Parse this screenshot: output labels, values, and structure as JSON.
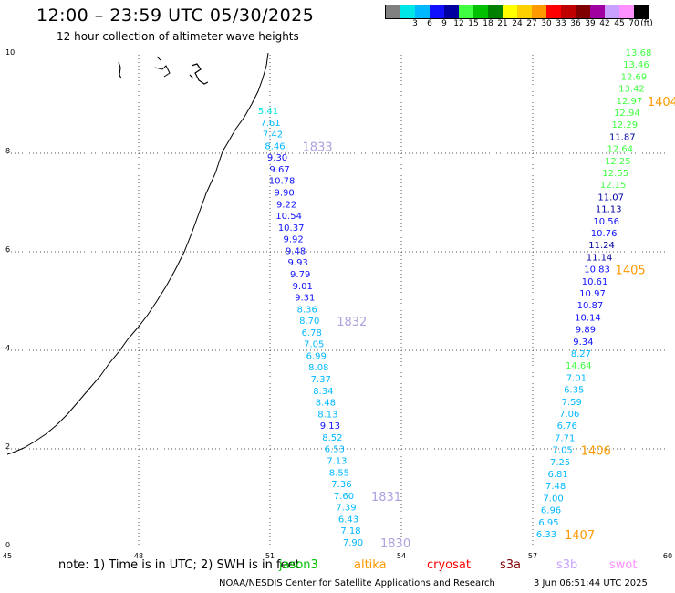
{
  "title": "12:00 – 23:59 UTC 05/30/2025",
  "subtitle": "12 hour collection of altimeter wave heights",
  "scale": {
    "unit": "(ft)",
    "items": [
      {
        "label": "",
        "color": "#808080"
      },
      {
        "label": "3",
        "color": "#00e5e5"
      },
      {
        "label": "6",
        "color": "#00b8ff"
      },
      {
        "label": "9",
        "color": "#1010ff"
      },
      {
        "label": "12",
        "color": "#0000a0"
      },
      {
        "label": "15",
        "color": "#40ff40"
      },
      {
        "label": "18",
        "color": "#00c000"
      },
      {
        "label": "21",
        "color": "#008000"
      },
      {
        "label": "24",
        "color": "#ffff00"
      },
      {
        "label": "27",
        "color": "#ffd000"
      },
      {
        "label": "30",
        "color": "#ff9900"
      },
      {
        "label": "33",
        "color": "#ff0000"
      },
      {
        "label": "36",
        "color": "#c00000"
      },
      {
        "label": "39",
        "color": "#800000"
      },
      {
        "label": "42",
        "color": "#a000a0"
      },
      {
        "label": "45",
        "color": "#c8a0ff"
      },
      {
        "label": "70",
        "color": "#ff90ff"
      },
      {
        "label": "",
        "color": "#000000"
      }
    ]
  },
  "axes": {
    "x_ticks": [
      "45",
      "48",
      "51",
      "54",
      "57",
      "60"
    ],
    "y_ticks": [
      "0",
      "2",
      "4",
      "6",
      "8",
      "10"
    ]
  },
  "track_left": {
    "points": [
      {
        "v": "5.41",
        "c": "#00e5e5"
      },
      {
        "v": "7.61",
        "c": "#00b8ff"
      },
      {
        "v": "7.42",
        "c": "#00b8ff"
      },
      {
        "v": "8.46",
        "c": "#00b8ff"
      },
      {
        "v": "9.30",
        "c": "#1010ff"
      },
      {
        "v": "9.67",
        "c": "#1010ff"
      },
      {
        "v": "10.78",
        "c": "#1010ff"
      },
      {
        "v": "9.90",
        "c": "#1010ff"
      },
      {
        "v": "9.22",
        "c": "#1010ff"
      },
      {
        "v": "10.54",
        "c": "#1010ff"
      },
      {
        "v": "10.37",
        "c": "#1010ff"
      },
      {
        "v": "9.92",
        "c": "#1010ff"
      },
      {
        "v": "9.48",
        "c": "#1010ff"
      },
      {
        "v": "9.93",
        "c": "#1010ff"
      },
      {
        "v": "9.79",
        "c": "#1010ff"
      },
      {
        "v": "9.01",
        "c": "#1010ff"
      },
      {
        "v": "9.31",
        "c": "#1010ff"
      },
      {
        "v": "8.36",
        "c": "#00b8ff"
      },
      {
        "v": "8.70",
        "c": "#00b8ff"
      },
      {
        "v": "6.78",
        "c": "#00b8ff"
      },
      {
        "v": "7.05",
        "c": "#00b8ff"
      },
      {
        "v": "6.99",
        "c": "#00b8ff"
      },
      {
        "v": "8.08",
        "c": "#00b8ff"
      },
      {
        "v": "7.37",
        "c": "#00b8ff"
      },
      {
        "v": "8.34",
        "c": "#00b8ff"
      },
      {
        "v": "8.48",
        "c": "#00b8ff"
      },
      {
        "v": "8.13",
        "c": "#00b8ff"
      },
      {
        "v": "9.13",
        "c": "#1010ff"
      },
      {
        "v": "8.52",
        "c": "#00b8ff"
      },
      {
        "v": "6.53",
        "c": "#00b8ff"
      },
      {
        "v": "7.13",
        "c": "#00b8ff"
      },
      {
        "v": "8.55",
        "c": "#00b8ff"
      },
      {
        "v": "7.36",
        "c": "#00b8ff"
      },
      {
        "v": "7.60",
        "c": "#00b8ff"
      },
      {
        "v": "7.39",
        "c": "#00b8ff"
      },
      {
        "v": "6.43",
        "c": "#00b8ff"
      },
      {
        "v": "7.18",
        "c": "#00b8ff"
      },
      {
        "v": "7.90",
        "c": "#00b8ff"
      }
    ],
    "times": [
      {
        "t": "1833",
        "i": 3
      },
      {
        "t": "1832",
        "i": 18
      },
      {
        "t": "1831",
        "i": 33
      },
      {
        "t": "1830",
        "i": 37
      }
    ]
  },
  "track_right": {
    "points": [
      {
        "v": "13.68",
        "c": "#40ff40"
      },
      {
        "v": "13.46",
        "c": "#40ff40"
      },
      {
        "v": "12.69",
        "c": "#40ff40"
      },
      {
        "v": "13.42",
        "c": "#40ff40"
      },
      {
        "v": "12.97",
        "c": "#40ff40"
      },
      {
        "v": "12.94",
        "c": "#40ff40"
      },
      {
        "v": "12.29",
        "c": "#40ff40"
      },
      {
        "v": "11.87",
        "c": "#0000a0"
      },
      {
        "v": "12.64",
        "c": "#40ff40"
      },
      {
        "v": "12.25",
        "c": "#40ff40"
      },
      {
        "v": "12.55",
        "c": "#40ff40"
      },
      {
        "v": "12.15",
        "c": "#40ff40"
      },
      {
        "v": "11.07",
        "c": "#0000a0"
      },
      {
        "v": "11.13",
        "c": "#0000a0"
      },
      {
        "v": "10.56",
        "c": "#1010ff"
      },
      {
        "v": "10.76",
        "c": "#1010ff"
      },
      {
        "v": "11.24",
        "c": "#0000a0"
      },
      {
        "v": "11.14",
        "c": "#0000a0"
      },
      {
        "v": "10.83",
        "c": "#1010ff"
      },
      {
        "v": "10.61",
        "c": "#1010ff"
      },
      {
        "v": "10.97",
        "c": "#1010ff"
      },
      {
        "v": "10.87",
        "c": "#1010ff"
      },
      {
        "v": "10.14",
        "c": "#1010ff"
      },
      {
        "v": "9.89",
        "c": "#1010ff"
      },
      {
        "v": "9.34",
        "c": "#1010ff"
      },
      {
        "v": "8.27",
        "c": "#00b8ff"
      },
      {
        "v": "14.64",
        "c": "#40ff40"
      },
      {
        "v": "7.01",
        "c": "#00b8ff"
      },
      {
        "v": "6.35",
        "c": "#00b8ff"
      },
      {
        "v": "7.59",
        "c": "#00b8ff"
      },
      {
        "v": "7.06",
        "c": "#00b8ff"
      },
      {
        "v": "6.76",
        "c": "#00b8ff"
      },
      {
        "v": "7.71",
        "c": "#00b8ff"
      },
      {
        "v": "7.05",
        "c": "#00b8ff"
      },
      {
        "v": "7.25",
        "c": "#00b8ff"
      },
      {
        "v": "6.81",
        "c": "#00b8ff"
      },
      {
        "v": "7.48",
        "c": "#00b8ff"
      },
      {
        "v": "7.00",
        "c": "#00b8ff"
      },
      {
        "v": "6.96",
        "c": "#00b8ff"
      },
      {
        "v": "6.95",
        "c": "#00b8ff"
      },
      {
        "v": "6.33",
        "c": "#00b8ff"
      }
    ],
    "times": [
      {
        "t": "1404",
        "i": 4
      },
      {
        "t": "1405",
        "i": 18
      },
      {
        "t": "1406",
        "i": 33
      },
      {
        "t": "1407",
        "i": 40
      }
    ]
  },
  "note": "note:  1) Time is in UTC; 2) SWH is in feet",
  "satellites": [
    {
      "name": "jason3",
      "color": "#00c000"
    },
    {
      "name": "altika",
      "color": "#ff9900"
    },
    {
      "name": "cryosat",
      "color": "#ff0000"
    },
    {
      "name": "s3a",
      "color": "#800000"
    },
    {
      "name": "s3b",
      "color": "#c8a0ff"
    },
    {
      "name": "swot",
      "color": "#ff90ff"
    }
  ],
  "credit": "NOAA/NESDIS Center for Satellite Applications and Research",
  "timestamp": "3 Jun 06:51:44 UTC 2025",
  "colors": {
    "time_left": "#b0a0e0",
    "time_right": "#ff9900"
  }
}
